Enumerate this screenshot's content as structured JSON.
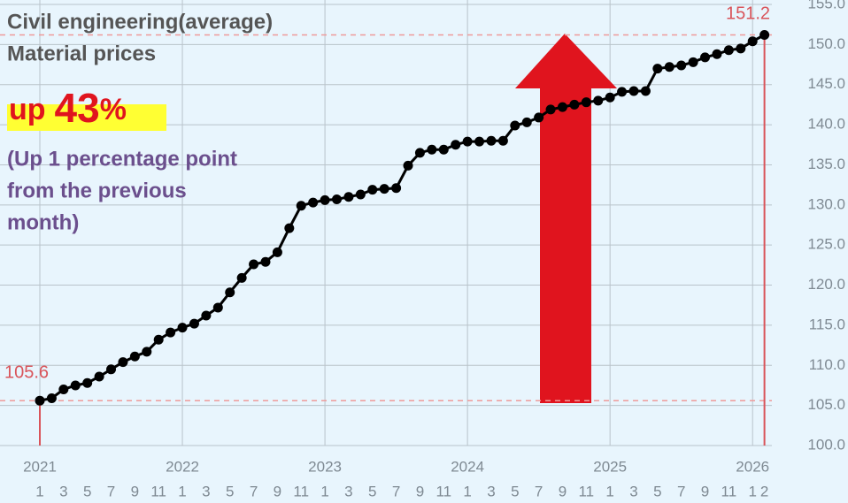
{
  "chart_data": {
    "type": "line",
    "annotations": {
      "title": [
        "Civil engineering(average)",
        "Material prices"
      ],
      "headline": [
        "up",
        "43",
        "%"
      ],
      "note": [
        "(Up 1 percentage point",
        "from the previous",
        "month)"
      ]
    },
    "categories": [
      "1",
      null,
      "3",
      null,
      "5",
      null,
      "7",
      null,
      "9",
      null,
      "11",
      null,
      "1",
      null,
      "3",
      null,
      "5",
      null,
      "7",
      null,
      "9",
      null,
      "11",
      null,
      "1",
      null,
      "3",
      null,
      "5",
      null,
      "7",
      null,
      "9",
      null,
      "11",
      null,
      "1",
      null,
      "3",
      null,
      "5",
      null,
      "7",
      null,
      "9",
      null,
      "11",
      null,
      "1",
      null,
      "3",
      null,
      "5",
      null,
      "7",
      null,
      "9",
      null,
      "11",
      null,
      "1",
      "2"
    ],
    "xticks": [
      {
        "value": 0,
        "label": "2021"
      },
      {
        "value": 12,
        "label": "2022"
      },
      {
        "value": 24,
        "label": "2023"
      },
      {
        "value": 36,
        "label": "2024"
      },
      {
        "value": 48,
        "label": "2025"
      },
      {
        "value": 60,
        "label": "2026"
      }
    ],
    "series": [
      {
        "name": "Civil engineering(average)",
        "color": "#000000",
        "values": [
          105.6,
          105.9,
          107.0,
          107.5,
          107.8,
          108.6,
          109.5,
          110.4,
          111.1,
          111.7,
          113.2,
          114.1,
          114.7,
          115.2,
          116.2,
          117.2,
          119.1,
          120.9,
          122.6,
          122.9,
          124.1,
          127.1,
          129.9,
          130.3,
          130.6,
          130.7,
          131.0,
          131.3,
          131.9,
          132.0,
          132.1,
          134.9,
          136.5,
          136.9,
          136.9,
          137.5,
          137.9,
          137.9,
          138.0,
          138.0,
          139.9,
          140.3,
          140.9,
          141.9,
          142.2,
          142.5,
          142.8,
          143.0,
          143.4,
          144.1,
          144.2,
          144.2,
          147.0,
          147.2,
          147.4,
          147.8,
          148.4,
          148.8,
          149.3,
          149.5,
          150.4,
          151.2
        ],
        "value_labels": [
          "105.6",
          null,
          null,
          null,
          null,
          null,
          null,
          null,
          null,
          null,
          null,
          null,
          null,
          null,
          null,
          null,
          null,
          null,
          null,
          null,
          null,
          null,
          null,
          null,
          null,
          null,
          null,
          null,
          null,
          null,
          null,
          null,
          null,
          null,
          null,
          null,
          null,
          null,
          null,
          null,
          null,
          null,
          null,
          null,
          null,
          null,
          null,
          null,
          null,
          null,
          null,
          null,
          null,
          null,
          null,
          null,
          null,
          null,
          null,
          null,
          null,
          "151.2"
        ]
      }
    ],
    "ylim": [
      100,
      155
    ],
    "yticks": [
      {
        "value": 100,
        "label": "100.0"
      },
      {
        "value": 105,
        "label": "105.0"
      },
      {
        "value": 110,
        "label": "110.0"
      },
      {
        "value": 115,
        "label": "115.0"
      },
      {
        "value": 120,
        "label": "120.0"
      },
      {
        "value": 125,
        "label": "125.0"
      },
      {
        "value": 130,
        "label": "130.0"
      },
      {
        "value": 135,
        "label": "135.0"
      },
      {
        "value": 140,
        "label": "140.0"
      },
      {
        "value": 145,
        "label": "145.0"
      },
      {
        "value": 150,
        "label": "150.0"
      },
      {
        "value": 155,
        "label": "155.0"
      }
    ],
    "grid": true,
    "highlight_color": "#e0141e"
  }
}
